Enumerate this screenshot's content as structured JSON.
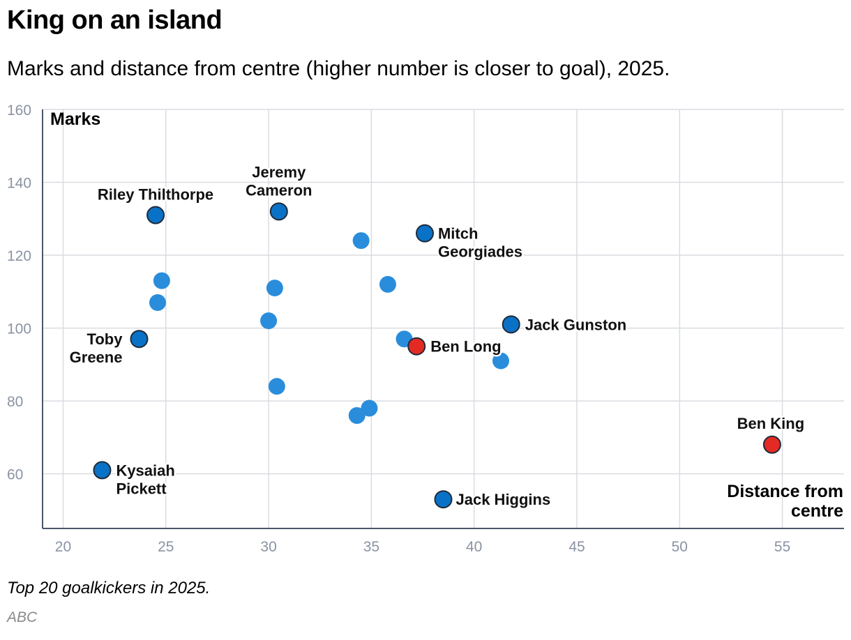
{
  "title": "King on an island",
  "subtitle": "Marks and distance from centre (higher number is closer to goal), 2025.",
  "note": "Top 20 goalkickers in 2025.",
  "source": "ABC",
  "colors": {
    "point": "#2a8ddb",
    "highlight_point": "#0a72c6",
    "ben_point": "#e32b24",
    "outline": "#1f2a3a"
  },
  "chart_data": {
    "type": "scatter",
    "title": "King on an island",
    "xlabel": "Distance from centre",
    "ylabel": "Marks",
    "xlim": [
      19,
      58
    ],
    "ylim": [
      45,
      160
    ],
    "xticks": [
      20,
      25,
      30,
      35,
      40,
      45,
      50,
      55
    ],
    "yticks": [
      60,
      80,
      100,
      120,
      140,
      160
    ],
    "grid": true,
    "points": [
      {
        "x": 24.5,
        "y": 131,
        "label": [
          "Riley Thilthorpe"
        ],
        "group": "labelled"
      },
      {
        "x": 30.5,
        "y": 132,
        "label": [
          "Jeremy",
          "Cameron"
        ],
        "group": "labelled"
      },
      {
        "x": 37.6,
        "y": 126,
        "label": [
          "Mitch",
          "Georgiades"
        ],
        "group": "labelled"
      },
      {
        "x": 41.8,
        "y": 101,
        "label": [
          "Jack Gunston"
        ],
        "group": "labelled"
      },
      {
        "x": 37.2,
        "y": 95,
        "label": [
          "Ben Long"
        ],
        "group": "ben"
      },
      {
        "x": 23.7,
        "y": 97,
        "label": [
          "Toby",
          "Greene"
        ],
        "group": "labelled"
      },
      {
        "x": 21.9,
        "y": 61,
        "label": [
          "Kysaiah",
          "Pickett"
        ],
        "group": "labelled"
      },
      {
        "x": 38.5,
        "y": 53,
        "label": [
          "Jack Higgins"
        ],
        "group": "labelled"
      },
      {
        "x": 54.5,
        "y": 68,
        "label": [
          "Ben King"
        ],
        "group": "ben"
      },
      {
        "x": 34.5,
        "y": 124,
        "label": [],
        "group": "other"
      },
      {
        "x": 35.8,
        "y": 112,
        "label": [],
        "group": "other"
      },
      {
        "x": 24.8,
        "y": 113,
        "label": [],
        "group": "other"
      },
      {
        "x": 24.6,
        "y": 107,
        "label": [],
        "group": "other"
      },
      {
        "x": 30.3,
        "y": 111,
        "label": [],
        "group": "other"
      },
      {
        "x": 30.0,
        "y": 102,
        "label": [],
        "group": "other"
      },
      {
        "x": 36.6,
        "y": 97,
        "label": [],
        "group": "other"
      },
      {
        "x": 41.3,
        "y": 91,
        "label": [],
        "group": "other"
      },
      {
        "x": 30.4,
        "y": 84,
        "label": [],
        "group": "other"
      },
      {
        "x": 34.9,
        "y": 78,
        "label": [],
        "group": "other"
      },
      {
        "x": 34.3,
        "y": 76,
        "label": [],
        "group": "other"
      }
    ]
  }
}
